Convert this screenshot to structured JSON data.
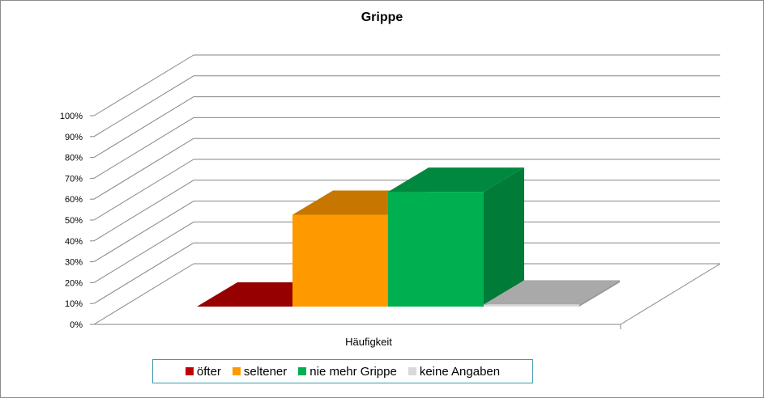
{
  "chart_data": {
    "type": "bar",
    "title": "Grippe",
    "categories": [
      "Häufigkeit"
    ],
    "series": [
      {
        "name": "öfter",
        "values": [
          0
        ],
        "color": "#c00000"
      },
      {
        "name": "seltener",
        "values": [
          44
        ],
        "color": "#ff9900"
      },
      {
        "name": "nie mehr Grippe",
        "values": [
          55
        ],
        "color": "#00b050"
      },
      {
        "name": "keine Angaben",
        "values": [
          1
        ],
        "color": "#d9d9d9"
      }
    ],
    "ylim": [
      0,
      100
    ],
    "y_tick_labels": [
      "0%",
      "10%",
      "20%",
      "30%",
      "40%",
      "50%",
      "60%",
      "70%",
      "80%",
      "90%",
      "100%"
    ],
    "grid": true,
    "legend_position": "bottom",
    "style": "3d-column"
  }
}
